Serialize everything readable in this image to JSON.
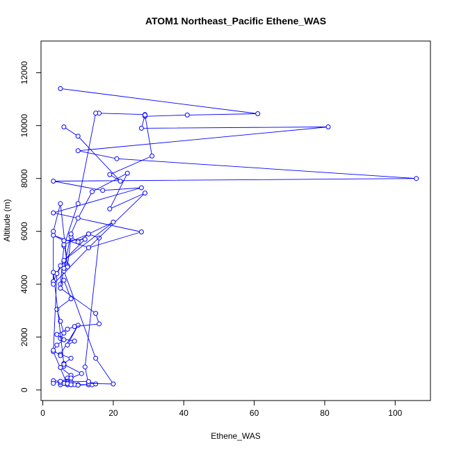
{
  "chart_data": {
    "type": "line",
    "title": "ATOM1 Northeast_Pacific Ethene_WAS",
    "xlabel": "Ethene_WAS",
    "ylabel": "Altitude (m)",
    "xlim": [
      -0.5,
      110
    ],
    "ylim": [
      -400,
      13200
    ],
    "xticks": [
      0,
      20,
      40,
      60,
      80,
      100
    ],
    "yticks": [
      0,
      2000,
      4000,
      6000,
      8000,
      10000,
      12000
    ],
    "color": "#0000ff",
    "marker": "open-circle",
    "grid": false,
    "series": [
      {
        "x": [
          5,
          61,
          41,
          29,
          29,
          16,
          15,
          10,
          6,
          5,
          6,
          8,
          4,
          5,
          6,
          5,
          9,
          7,
          10,
          5,
          8,
          6,
          6,
          6,
          5,
          8,
          7,
          7,
          5,
          6,
          7,
          6,
          8,
          7,
          5,
          8,
          7,
          3,
          4,
          6,
          5,
          3,
          3,
          5,
          7,
          6,
          6,
          13,
          16,
          12,
          13,
          10,
          7,
          9,
          5,
          8,
          8,
          10,
          13,
          14,
          15
        ],
        "y": [
          11400,
          10450,
          10400,
          10350,
          10420,
          10470,
          10470,
          7050,
          5450,
          4000,
          4150,
          3450,
          3050,
          2600,
          2150,
          1950,
          1850,
          1700,
          2450,
          1350,
          1200,
          1000,
          950,
          900,
          850,
          550,
          450,
          300,
          200,
          250,
          300,
          250,
          200,
          200,
          200,
          300,
          200,
          1450,
          4400,
          4850,
          4700,
          4100,
          6000,
          7050,
          4700,
          5650,
          5500,
          5900,
          5750,
          870,
          200,
          200,
          240,
          200,
          280,
          200,
          200,
          180,
          200,
          200,
          230
        ]
      },
      {
        "x": [
          6,
          10,
          22,
          19,
          31,
          29,
          28,
          81,
          10,
          21,
          106,
          3,
          17,
          28,
          3,
          28,
          13,
          3,
          6,
          12,
          6,
          20,
          13,
          10,
          8,
          7,
          6,
          15,
          20,
          13,
          13,
          5,
          3,
          3,
          8,
          11,
          6,
          3,
          3,
          3,
          13,
          29,
          19,
          24,
          14,
          10,
          8,
          6,
          5,
          15,
          16,
          9,
          7,
          4,
          6,
          4,
          3,
          5
        ],
        "y": [
          9950,
          9600,
          7900,
          8150,
          8850,
          10400,
          9900,
          9950,
          9050,
          8750,
          8000,
          7900,
          7550,
          7650,
          6700,
          5980,
          5380,
          5850,
          5650,
          5700,
          4900,
          6350,
          5900,
          5600,
          5800,
          4650,
          4500,
          1200,
          230,
          250,
          320,
          330,
          350,
          250,
          450,
          620,
          970,
          4450,
          4100,
          4000,
          5380,
          7450,
          6850,
          8200,
          7500,
          6500,
          5900,
          4600,
          3850,
          2900,
          2500,
          2400,
          2300,
          2100,
          1900,
          1700,
          1500,
          1300
        ]
      }
    ]
  }
}
